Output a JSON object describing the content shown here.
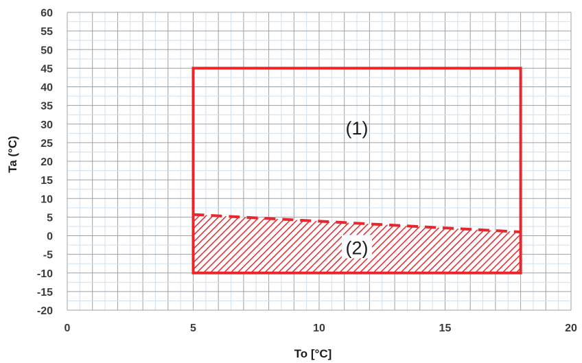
{
  "chart_data": {
    "type": "area",
    "title": "",
    "xlabel": "To [°C]",
    "ylabel": "Ta (°C)",
    "xlim": [
      0,
      20
    ],
    "ylim": [
      -20,
      60
    ],
    "x_ticks": [
      0,
      5,
      10,
      15,
      20
    ],
    "y_ticks": [
      60,
      55,
      50,
      45,
      40,
      35,
      30,
      25,
      20,
      15,
      10,
      5,
      0,
      -5,
      -10,
      -15,
      -20
    ],
    "grid": true,
    "regions": [
      {
        "label": "(1)",
        "shape": "rectangle",
        "x": [
          5,
          18
        ],
        "y": [
          -10,
          45
        ],
        "color": "#e8262b",
        "label_at": [
          11.5,
          29
        ]
      },
      {
        "label": "(2)",
        "shape": "hatched polygon",
        "points": [
          [
            5,
            -10
          ],
          [
            18,
            -10
          ],
          [
            18,
            1
          ],
          [
            5,
            5.7
          ]
        ],
        "boundary_line": {
          "style": "dashed",
          "x": [
            5,
            18
          ],
          "y": [
            5.7,
            1
          ]
        },
        "color": "#e8262b",
        "label_at": [
          11.5,
          -3.5
        ]
      }
    ]
  },
  "colors": {
    "accent": "#e8262b",
    "grid_major": "#9aa0a6",
    "grid_minor": "#cfe0ef",
    "text": "#3a3a3a"
  }
}
